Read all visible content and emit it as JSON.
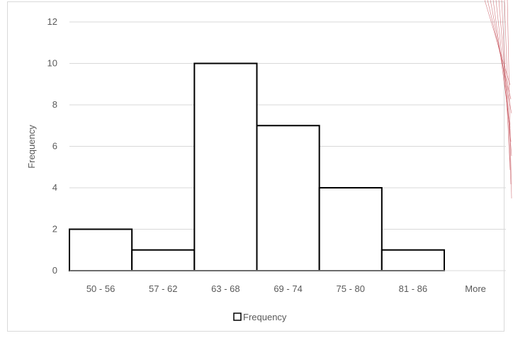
{
  "chart_data": {
    "type": "bar",
    "title": "",
    "xlabel": "",
    "ylabel": "Frequency",
    "categories": [
      "50 - 56",
      "57 - 62",
      "63 - 68",
      "69 - 74",
      "75 - 80",
      "81 - 86",
      "More"
    ],
    "series": [
      {
        "name": "Frequency",
        "values": [
          2,
          1,
          10,
          7,
          4,
          1,
          0
        ]
      }
    ],
    "ylim": [
      0,
      12
    ],
    "yticks": [
      "0",
      "2",
      "4",
      "6",
      "8",
      "10",
      "12"
    ],
    "grid": true,
    "legend": "bottom",
    "colors": {
      "bar_fill": "#ffffff",
      "bar_stroke": "#000000",
      "grid": "#d9d9d9",
      "text": "#595959",
      "frame": "#d9d9d9",
      "decor": "#c0404a"
    }
  }
}
